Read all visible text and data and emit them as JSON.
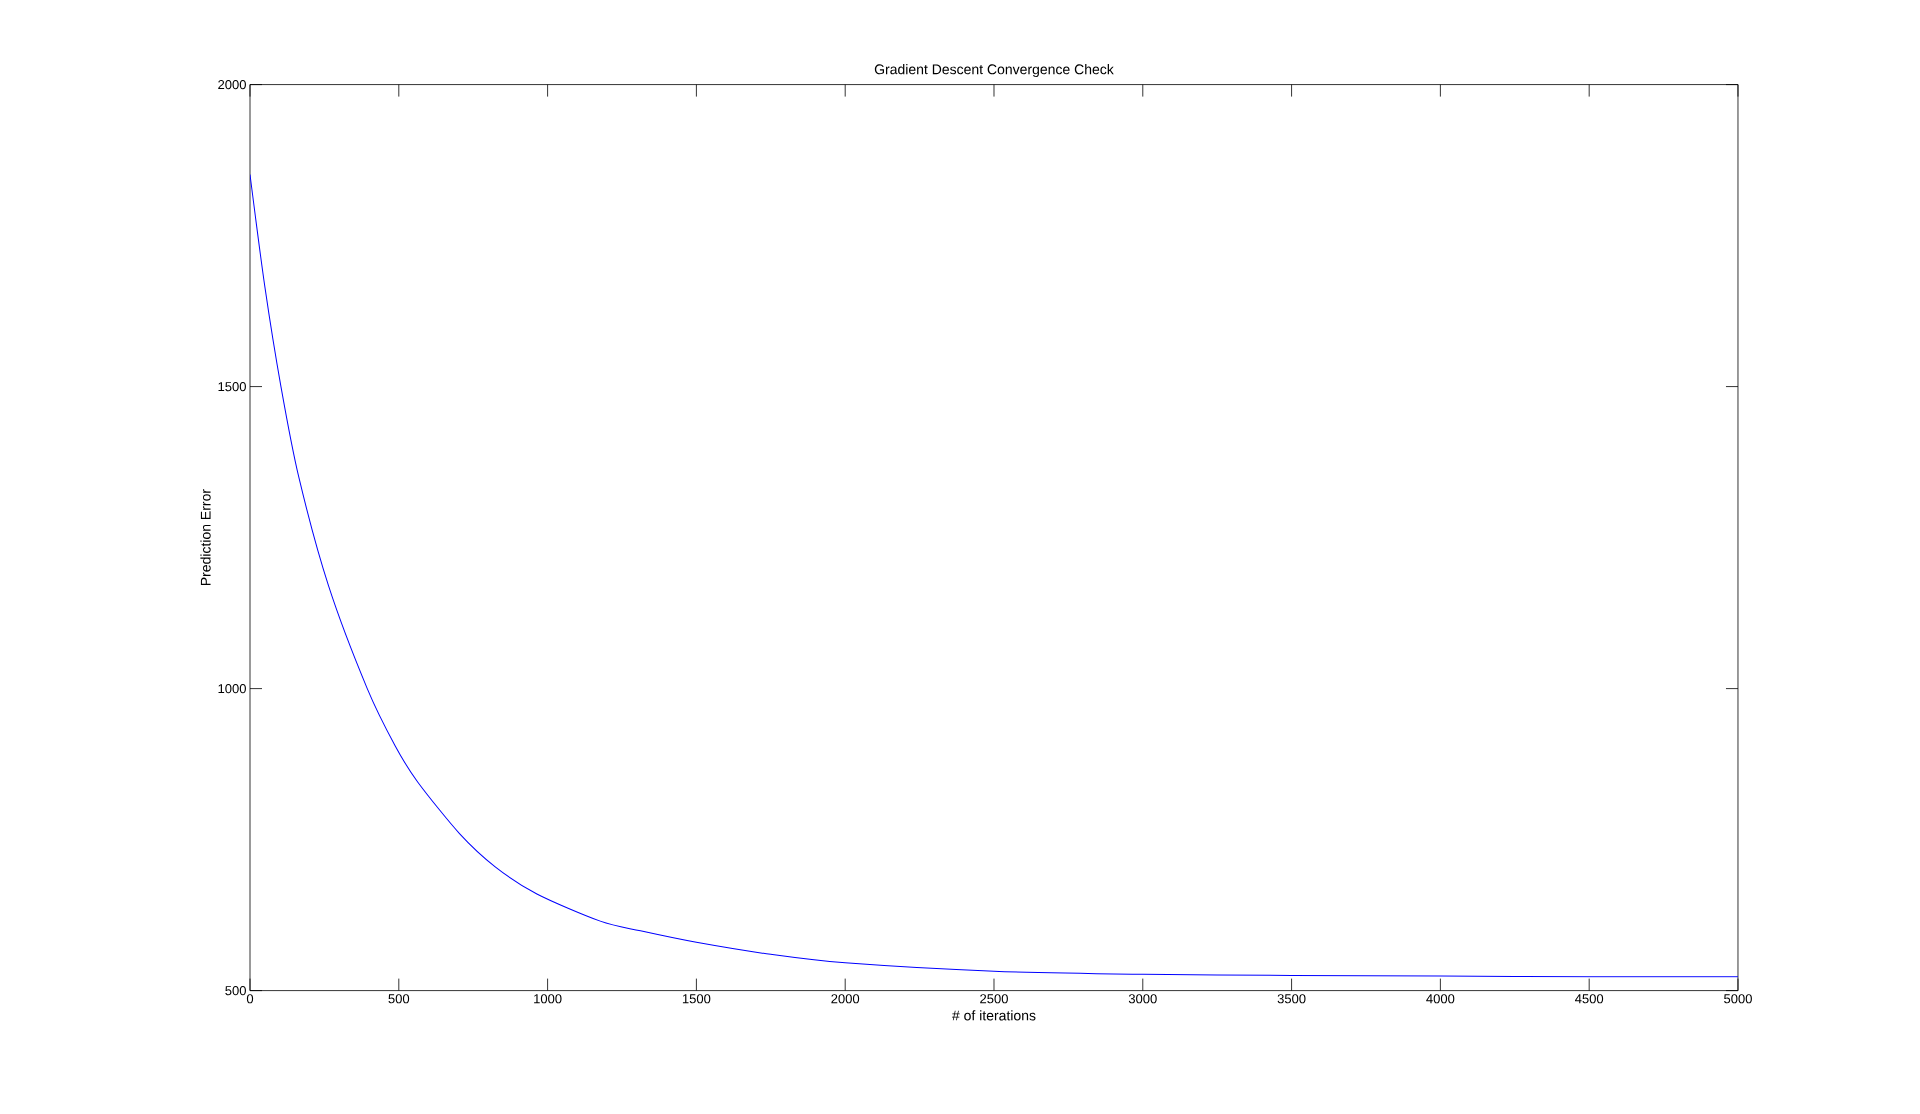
{
  "chart_data": {
    "type": "line",
    "title": "Gradient Descent Convergence Check",
    "xlabel": "# of iterations",
    "ylabel": "Prediction Error",
    "xlim": [
      0,
      5000
    ],
    "ylim": [
      500,
      2000
    ],
    "xticks": [
      0,
      500,
      1000,
      1500,
      2000,
      2500,
      3000,
      3500,
      4000,
      4500,
      5000
    ],
    "yticks": [
      500,
      1000,
      1500,
      2000
    ],
    "grid": false,
    "series": [
      {
        "color": "#0000ff",
        "x": [
          0,
          50,
          104,
          164,
          264,
          394,
          488,
          564,
          704,
          824,
          964,
          1177,
          1312,
          1500,
          1750,
          2000,
          2500,
          3000,
          3500,
          4000,
          4500,
          5000
        ],
        "values": [
          1851,
          1665,
          1500,
          1350,
          1170,
          1000,
          905,
          845,
          760,
          705,
          660,
          615,
          599,
          580,
          560,
          546,
          532,
          527,
          525,
          524,
          523,
          523
        ]
      }
    ]
  }
}
